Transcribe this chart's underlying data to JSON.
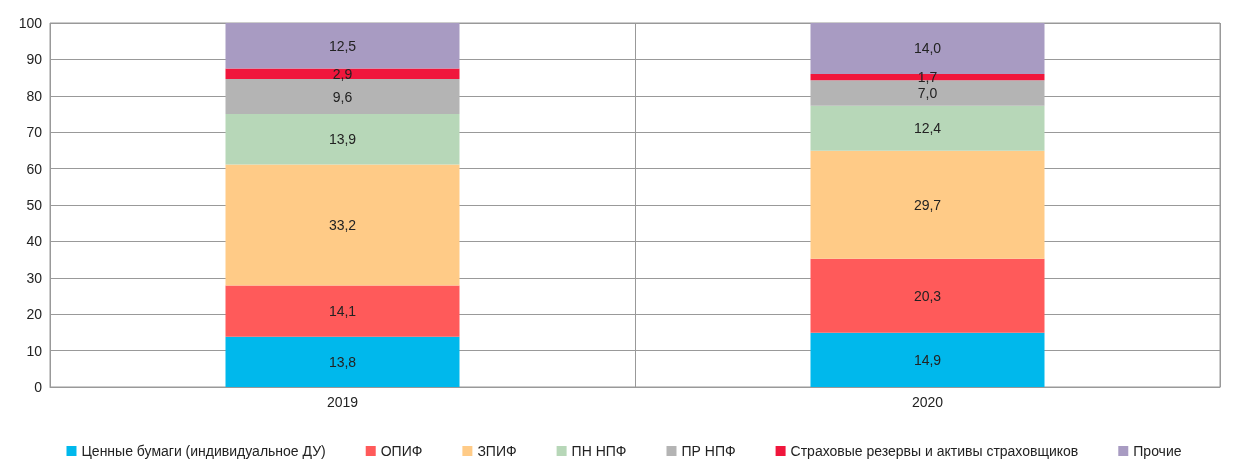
{
  "chart_data": {
    "type": "bar",
    "stacked": true,
    "categories": [
      "2019",
      "2020"
    ],
    "series": [
      {
        "name": "Ценные бумаги (индивидуальное ДУ)",
        "color": "#00b8ec",
        "values": [
          13.8,
          14.9
        ],
        "value_labels": [
          "13,8",
          "14,9"
        ]
      },
      {
        "name": "ОПИФ",
        "color": "#ff5a5a",
        "values": [
          14.1,
          20.3
        ],
        "value_labels": [
          "14,1",
          "20,3"
        ]
      },
      {
        "name": "ЗПИФ",
        "color": "#ffcb87",
        "values": [
          33.2,
          29.7
        ],
        "value_labels": [
          "33,2",
          "29,7"
        ]
      },
      {
        "name": "ПН НПФ",
        "color": "#b7d7b8",
        "values": [
          13.9,
          12.4
        ],
        "value_labels": [
          "13,9",
          "12,4"
        ]
      },
      {
        "name": "ПР НПФ",
        "color": "#b4b4b4",
        "values": [
          9.6,
          7.0
        ],
        "value_labels": [
          "9,6",
          "7,0"
        ]
      },
      {
        "name": "Страховые резервы и активы страховщиков",
        "color": "#f0163c",
        "values": [
          2.9,
          1.7
        ],
        "value_labels": [
          "2,9",
          "1,7"
        ]
      },
      {
        "name": "Прочие",
        "color": "#a89bc2",
        "values": [
          12.5,
          14.0
        ],
        "value_labels": [
          "12,5",
          "14,0"
        ]
      }
    ],
    "ylim": [
      0,
      100
    ],
    "yticks": [
      0,
      10,
      20,
      30,
      40,
      50,
      60,
      70,
      80,
      90,
      100
    ],
    "grid": true,
    "legend": "bottom"
  }
}
